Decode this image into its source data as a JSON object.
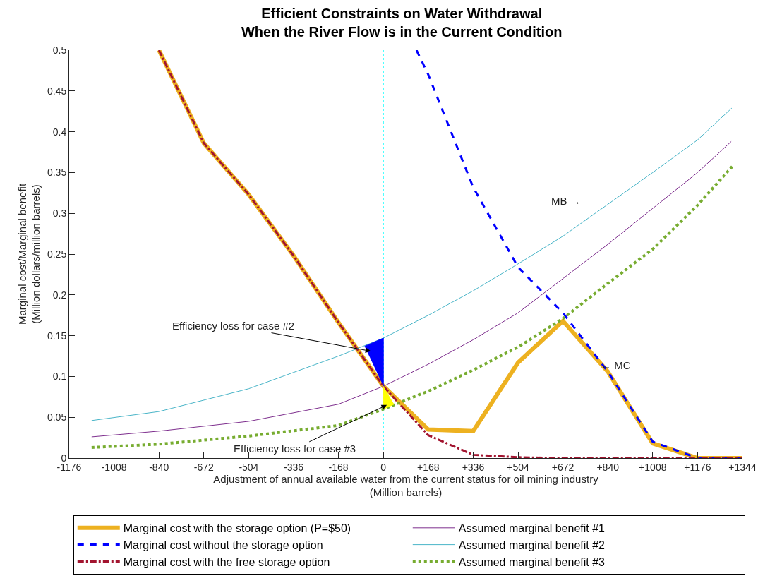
{
  "chart_data": {
    "type": "line",
    "title": "Efficient Constraints on Water Withdrawal\nWhen the River Flow is in the Current Condition",
    "xlabel": "Adjustment of annual available water from the current status for oil mining industry\n(Million barrels)",
    "ylabel": "Marginal cost/Marginal benefit\n(Million dollars/million barrels)",
    "xlim": [
      -1176,
      1344
    ],
    "xticks": [
      -1176,
      -1008,
      -840,
      -672,
      -504,
      -336,
      -168,
      0,
      {
        "value": 168,
        "label": "+168"
      },
      {
        "value": 336,
        "label": "+336"
      },
      {
        "value": 504,
        "label": "+504"
      },
      {
        "value": 672,
        "label": "+672"
      },
      {
        "value": 840,
        "label": "+840"
      },
      {
        "value": 1008,
        "label": "+1008"
      },
      {
        "value": 1176,
        "label": "+1176"
      },
      {
        "value": 1344,
        "label": "+1344"
      }
    ],
    "ylim": [
      0,
      0.5
    ],
    "yticks": [
      0,
      0.05,
      0.1,
      0.15,
      0.2,
      0.25,
      0.3,
      0.35,
      0.4,
      0.45,
      0.5
    ],
    "grid": false,
    "legend": "bottom",
    "marker": "none",
    "series": [
      {
        "name": "Marginal cost with the storage option (P=$50)",
        "color": "#edb120",
        "line_style": "solid",
        "x": [
          -840,
          -672,
          -504,
          -336,
          -168,
          0,
          168,
          336,
          504,
          672,
          840,
          1008,
          1176,
          1344
        ],
        "values": [
          0.5,
          0.386,
          0.323,
          0.248,
          0.166,
          0.088,
          0.035,
          0.033,
          0.117,
          0.168,
          0.106,
          0.018,
          0,
          0
        ]
      },
      {
        "name": "Marginal cost without the storage option",
        "color": "#0000ff",
        "line_style": "dashed",
        "x": [
          124,
          168,
          336,
          504,
          672,
          840,
          1008,
          1176,
          1344
        ],
        "values": [
          0.5,
          0.47,
          0.332,
          0.234,
          0.178,
          0.106,
          0.02,
          0,
          0
        ]
      },
      {
        "name": "Marginal cost with the free storage option",
        "color": "#a2142f",
        "line_style": "dashdot",
        "x": [
          -840,
          -672,
          -504,
          -336,
          -168,
          0,
          168,
          336,
          504,
          672,
          840,
          1008,
          1176,
          1344
        ],
        "values": [
          0.5,
          0.386,
          0.323,
          0.248,
          0.166,
          0.088,
          0.028,
          0.004,
          0.001,
          0,
          0,
          0,
          0,
          0
        ]
      },
      {
        "name": "Assumed marginal benefit #1",
        "color": "#7e2f8e",
        "line_style": "solid",
        "x": [
          -1092,
          -840,
          -504,
          -168,
          0,
          168,
          336,
          504,
          672,
          840,
          1008,
          1176,
          1302
        ],
        "values": [
          0.026,
          0.033,
          0.045,
          0.066,
          0.088,
          0.115,
          0.145,
          0.178,
          0.22,
          0.262,
          0.306,
          0.35,
          0.388
        ]
      },
      {
        "name": "Assumed marginal benefit #2",
        "color": "#4ab5c8",
        "line_style": "solid",
        "x": [
          -1092,
          -840,
          -504,
          -168,
          0,
          168,
          336,
          504,
          672,
          840,
          1008,
          1176,
          1304
        ],
        "values": [
          0.046,
          0.057,
          0.085,
          0.125,
          0.147,
          0.175,
          0.205,
          0.238,
          0.272,
          0.311,
          0.35,
          0.39,
          0.429
        ]
      },
      {
        "name": "Assumed marginal benefit #3",
        "color": "#77ac30",
        "line_style": "dotted",
        "x": [
          -1092,
          -840,
          -504,
          -168,
          0,
          168,
          336,
          504,
          672,
          840,
          1008,
          1176,
          1310
        ],
        "values": [
          0.013,
          0.017,
          0.027,
          0.04,
          0.06,
          0.082,
          0.108,
          0.136,
          0.171,
          0.214,
          0.256,
          0.31,
          0.359
        ]
      },
      {
        "type": "area",
        "color": "#0000ff",
        "x": [
          -70,
          0,
          0
        ],
        "values": [
          0.137,
          0.147,
          0.088
        ]
      },
      {
        "type": "area",
        "color": "#ffff00",
        "x": [
          0,
          0,
          40
        ],
        "values": [
          0.088,
          0.06,
          0.066
        ]
      }
    ],
    "ref_lines": [
      {
        "axis": "x",
        "value": 0,
        "color": "#00ffff",
        "line_style": "dotted"
      }
    ],
    "annotations": [
      "Efficiency loss for case #2",
      {
        "text": "Efficiency loss for case #3",
        "x": 13,
        "y": 0.065
      },
      "MB →",
      "← MC"
    ]
  }
}
